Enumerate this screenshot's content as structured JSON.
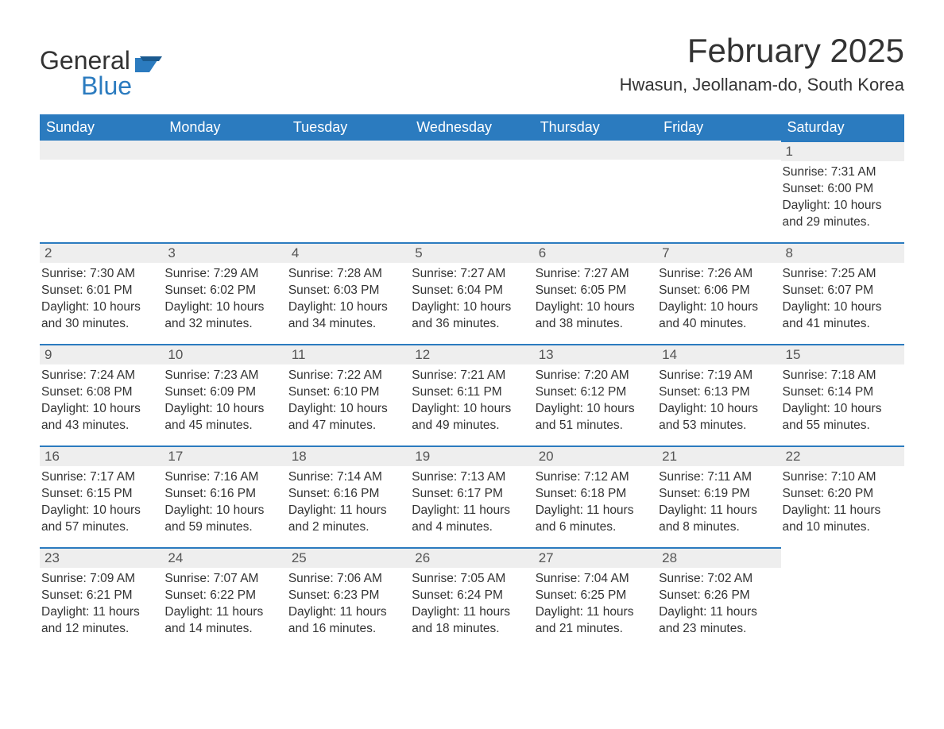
{
  "logo": {
    "general": "General",
    "blue": "Blue"
  },
  "title": "February 2025",
  "location": "Hwasun, Jeollanam-do, South Korea",
  "colors": {
    "header_bg": "#2b7bbf",
    "header_text": "#ffffff",
    "daynum_bg": "#eeeeee",
    "row_border": "#2b7bbf",
    "body_text": "#333333",
    "logo_blue": "#2b7bbf"
  },
  "days_of_week": [
    "Sunday",
    "Monday",
    "Tuesday",
    "Wednesday",
    "Thursday",
    "Friday",
    "Saturday"
  ],
  "weeks": [
    [
      null,
      null,
      null,
      null,
      null,
      null,
      {
        "n": "1",
        "sunrise": "7:31 AM",
        "sunset": "6:00 PM",
        "daylight": "10 hours and 29 minutes."
      }
    ],
    [
      {
        "n": "2",
        "sunrise": "7:30 AM",
        "sunset": "6:01 PM",
        "daylight": "10 hours and 30 minutes."
      },
      {
        "n": "3",
        "sunrise": "7:29 AM",
        "sunset": "6:02 PM",
        "daylight": "10 hours and 32 minutes."
      },
      {
        "n": "4",
        "sunrise": "7:28 AM",
        "sunset": "6:03 PM",
        "daylight": "10 hours and 34 minutes."
      },
      {
        "n": "5",
        "sunrise": "7:27 AM",
        "sunset": "6:04 PM",
        "daylight": "10 hours and 36 minutes."
      },
      {
        "n": "6",
        "sunrise": "7:27 AM",
        "sunset": "6:05 PM",
        "daylight": "10 hours and 38 minutes."
      },
      {
        "n": "7",
        "sunrise": "7:26 AM",
        "sunset": "6:06 PM",
        "daylight": "10 hours and 40 minutes."
      },
      {
        "n": "8",
        "sunrise": "7:25 AM",
        "sunset": "6:07 PM",
        "daylight": "10 hours and 41 minutes."
      }
    ],
    [
      {
        "n": "9",
        "sunrise": "7:24 AM",
        "sunset": "6:08 PM",
        "daylight": "10 hours and 43 minutes."
      },
      {
        "n": "10",
        "sunrise": "7:23 AM",
        "sunset": "6:09 PM",
        "daylight": "10 hours and 45 minutes."
      },
      {
        "n": "11",
        "sunrise": "7:22 AM",
        "sunset": "6:10 PM",
        "daylight": "10 hours and 47 minutes."
      },
      {
        "n": "12",
        "sunrise": "7:21 AM",
        "sunset": "6:11 PM",
        "daylight": "10 hours and 49 minutes."
      },
      {
        "n": "13",
        "sunrise": "7:20 AM",
        "sunset": "6:12 PM",
        "daylight": "10 hours and 51 minutes."
      },
      {
        "n": "14",
        "sunrise": "7:19 AM",
        "sunset": "6:13 PM",
        "daylight": "10 hours and 53 minutes."
      },
      {
        "n": "15",
        "sunrise": "7:18 AM",
        "sunset": "6:14 PM",
        "daylight": "10 hours and 55 minutes."
      }
    ],
    [
      {
        "n": "16",
        "sunrise": "7:17 AM",
        "sunset": "6:15 PM",
        "daylight": "10 hours and 57 minutes."
      },
      {
        "n": "17",
        "sunrise": "7:16 AM",
        "sunset": "6:16 PM",
        "daylight": "10 hours and 59 minutes."
      },
      {
        "n": "18",
        "sunrise": "7:14 AM",
        "sunset": "6:16 PM",
        "daylight": "11 hours and 2 minutes."
      },
      {
        "n": "19",
        "sunrise": "7:13 AM",
        "sunset": "6:17 PM",
        "daylight": "11 hours and 4 minutes."
      },
      {
        "n": "20",
        "sunrise": "7:12 AM",
        "sunset": "6:18 PM",
        "daylight": "11 hours and 6 minutes."
      },
      {
        "n": "21",
        "sunrise": "7:11 AM",
        "sunset": "6:19 PM",
        "daylight": "11 hours and 8 minutes."
      },
      {
        "n": "22",
        "sunrise": "7:10 AM",
        "sunset": "6:20 PM",
        "daylight": "11 hours and 10 minutes."
      }
    ],
    [
      {
        "n": "23",
        "sunrise": "7:09 AM",
        "sunset": "6:21 PM",
        "daylight": "11 hours and 12 minutes."
      },
      {
        "n": "24",
        "sunrise": "7:07 AM",
        "sunset": "6:22 PM",
        "daylight": "11 hours and 14 minutes."
      },
      {
        "n": "25",
        "sunrise": "7:06 AM",
        "sunset": "6:23 PM",
        "daylight": "11 hours and 16 minutes."
      },
      {
        "n": "26",
        "sunrise": "7:05 AM",
        "sunset": "6:24 PM",
        "daylight": "11 hours and 18 minutes."
      },
      {
        "n": "27",
        "sunrise": "7:04 AM",
        "sunset": "6:25 PM",
        "daylight": "11 hours and 21 minutes."
      },
      {
        "n": "28",
        "sunrise": "7:02 AM",
        "sunset": "6:26 PM",
        "daylight": "11 hours and 23 minutes."
      },
      null
    ]
  ],
  "labels": {
    "sunrise": "Sunrise: ",
    "sunset": "Sunset: ",
    "daylight": "Daylight: "
  }
}
